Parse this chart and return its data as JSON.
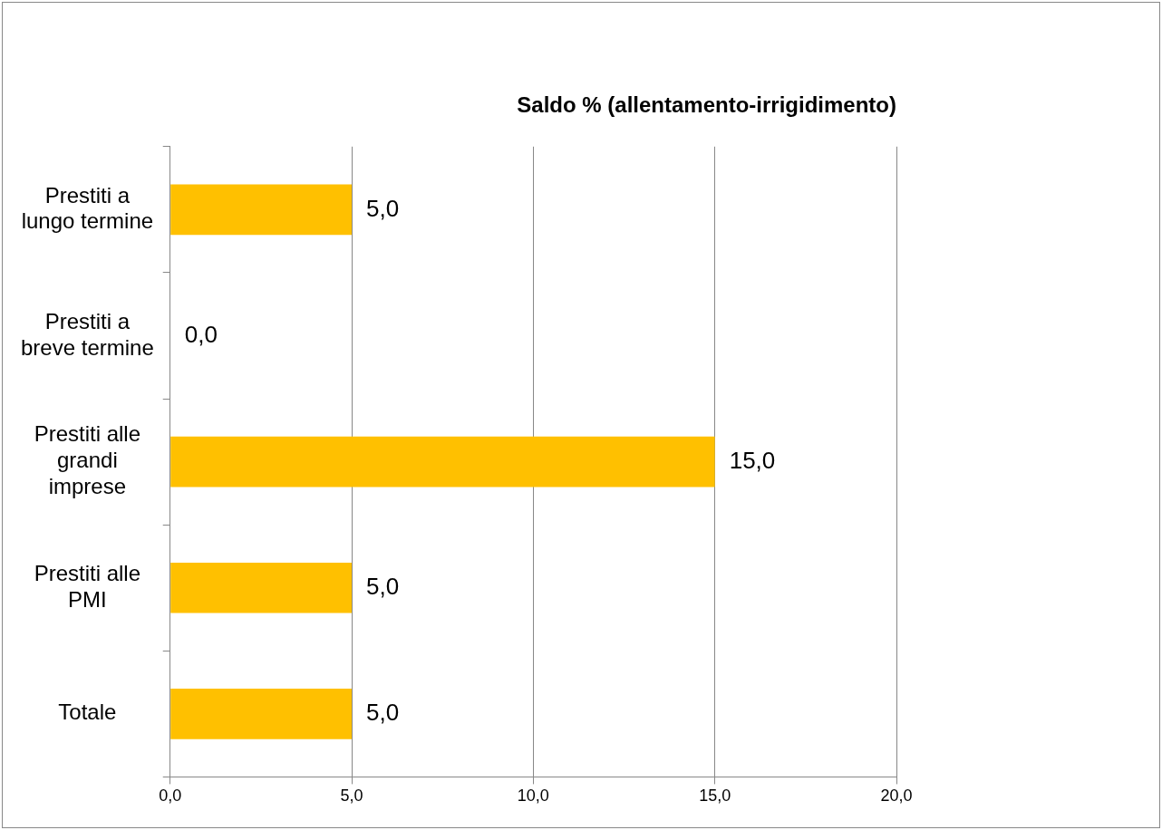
{
  "chart_data": {
    "type": "bar",
    "orientation": "horizontal",
    "title": "Saldo % (allentamento-irrigidimento)",
    "categories": [
      "Prestiti a lungo termine",
      "Prestiti a breve termine",
      "Prestiti alle grandi imprese",
      "Prestiti alle PMI",
      "Totale"
    ],
    "values": [
      5,
      0,
      15,
      5,
      5
    ],
    "color": "#ffc000",
    "value_labels": [
      "5,0",
      "0,0",
      "15,0",
      "5,0",
      "5,0"
    ],
    "xlim": [
      0,
      20
    ],
    "xticks": [
      {
        "value": 0,
        "label": "0,0"
      },
      {
        "value": 5,
        "label": "5,0"
      },
      {
        "value": 10,
        "label": "10,0"
      },
      {
        "value": 15,
        "label": "15,0"
      },
      {
        "value": 20,
        "label": "20,0"
      }
    ],
    "grid": "x",
    "legend": false
  }
}
